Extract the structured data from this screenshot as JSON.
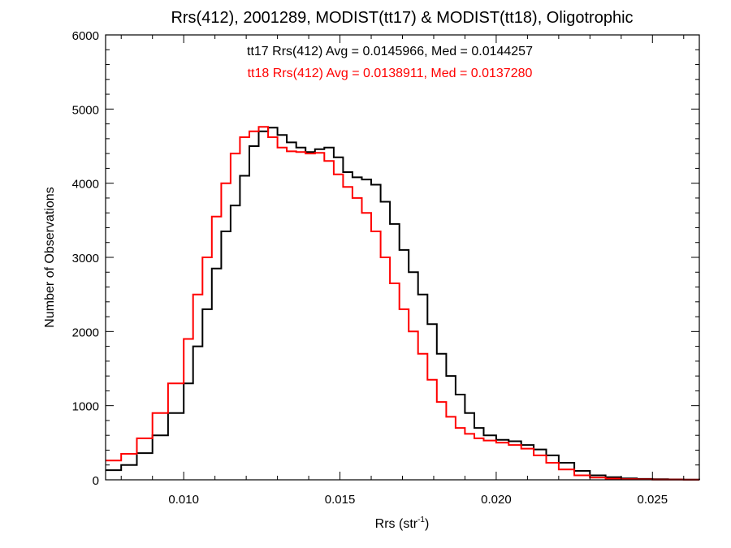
{
  "chart_data": {
    "type": "line",
    "title": "Rrs(412), 2001289, MODIST(tt17) & MODIST(tt18), Oligotrophic",
    "xlabel": "Rrs (str",
    "xlabel_sup": "-1",
    "xlabel_end": ")",
    "ylabel": "Number of Observations",
    "xlim": [
      0.0075,
      0.0265
    ],
    "ylim": [
      0,
      6000
    ],
    "x_ticks": [
      0.01,
      0.015,
      0.02,
      0.025
    ],
    "x_tick_labels": [
      "0.010",
      "0.015",
      "0.020",
      "0.025"
    ],
    "y_ticks": [
      0,
      1000,
      2000,
      3000,
      4000,
      5000,
      6000
    ],
    "y_tick_labels": [
      "0",
      "1000",
      "2000",
      "3000",
      "4000",
      "5000",
      "6000"
    ],
    "grid": false,
    "step": true,
    "annotations": [
      {
        "text": "tt17 Rrs(412) Avg = 0.0145966, Med = 0.0144257",
        "color": "#000000"
      },
      {
        "text": "tt18 Rrs(412) Avg = 0.0138911, Med = 0.0137280",
        "color": "#ff0000"
      }
    ],
    "series": [
      {
        "color": "#000000",
        "x": [
          0.0075,
          0.008,
          0.0085,
          0.009,
          0.0095,
          0.01,
          0.0103,
          0.0106,
          0.0109,
          0.0112,
          0.0115,
          0.0118,
          0.0121,
          0.0124,
          0.0127,
          0.013,
          0.0133,
          0.0136,
          0.0139,
          0.0142,
          0.0145,
          0.0148,
          0.0151,
          0.0154,
          0.0157,
          0.016,
          0.0163,
          0.0166,
          0.0169,
          0.0172,
          0.0175,
          0.0178,
          0.0181,
          0.0184,
          0.0187,
          0.019,
          0.0193,
          0.0196,
          0.02,
          0.0204,
          0.0208,
          0.0212,
          0.0216,
          0.022,
          0.0225,
          0.023,
          0.0235,
          0.024,
          0.0245,
          0.025,
          0.0255,
          0.026,
          0.0265
        ],
        "values": [
          130,
          200,
          360,
          600,
          900,
          1300,
          1800,
          2300,
          2850,
          3350,
          3700,
          4100,
          4500,
          4700,
          4750,
          4650,
          4550,
          4480,
          4420,
          4460,
          4480,
          4350,
          4150,
          4080,
          4050,
          3980,
          3750,
          3450,
          3100,
          2800,
          2500,
          2100,
          1700,
          1400,
          1150,
          900,
          700,
          600,
          540,
          520,
          470,
          410,
          330,
          230,
          120,
          60,
          35,
          20,
          12,
          8,
          5,
          3,
          2
        ]
      },
      {
        "color": "#ff0000",
        "x": [
          0.0075,
          0.008,
          0.0085,
          0.009,
          0.0095,
          0.01,
          0.0103,
          0.0106,
          0.0109,
          0.0112,
          0.0115,
          0.0118,
          0.0121,
          0.0124,
          0.0127,
          0.013,
          0.0133,
          0.0136,
          0.0139,
          0.0142,
          0.0145,
          0.0148,
          0.0151,
          0.0154,
          0.0157,
          0.016,
          0.0163,
          0.0166,
          0.0169,
          0.0172,
          0.0175,
          0.0178,
          0.0181,
          0.0184,
          0.0187,
          0.019,
          0.0193,
          0.0196,
          0.02,
          0.0204,
          0.0208,
          0.0212,
          0.0216,
          0.022,
          0.0225,
          0.023,
          0.0235,
          0.024,
          0.0245,
          0.025,
          0.0255,
          0.026,
          0.0265
        ],
        "values": [
          260,
          350,
          560,
          900,
          1300,
          1900,
          2500,
          3000,
          3550,
          4000,
          4400,
          4620,
          4700,
          4760,
          4620,
          4480,
          4430,
          4420,
          4400,
          4410,
          4300,
          4120,
          3950,
          3800,
          3600,
          3350,
          3000,
          2650,
          2300,
          2000,
          1700,
          1350,
          1050,
          850,
          700,
          620,
          560,
          530,
          500,
          470,
          420,
          330,
          230,
          140,
          60,
          30,
          16,
          9,
          5,
          3,
          2,
          1,
          1
        ]
      }
    ]
  }
}
